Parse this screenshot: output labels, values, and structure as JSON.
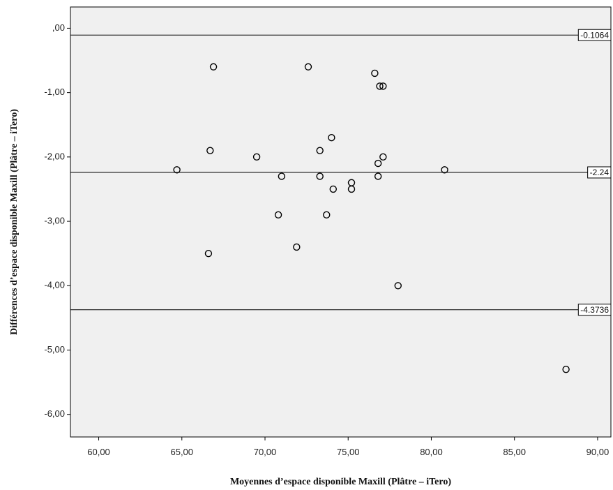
{
  "chart_data": {
    "type": "scatter",
    "title": "",
    "xlabel": "Moyennes d’espace disponible Maxill (Plâtre – iTero)",
    "ylabel": "Différences d’espace disponible Maxill (Plâtre – iTero)",
    "xlim": [
      58.3,
      90.8
    ],
    "ylim": [
      -6.35,
      0.33
    ],
    "grid": false,
    "plot_background": "#f0f0f0",
    "x_ticks": [
      {
        "value": 60,
        "label": "60,00"
      },
      {
        "value": 65,
        "label": "65,00"
      },
      {
        "value": 70,
        "label": "70,00"
      },
      {
        "value": 75,
        "label": "75,00"
      },
      {
        "value": 80,
        "label": "80,00"
      },
      {
        "value": 85,
        "label": "85,00"
      },
      {
        "value": 90,
        "label": "90,00"
      }
    ],
    "y_ticks": [
      {
        "value": 0,
        "label": ",00"
      },
      {
        "value": -1,
        "label": "-1,00"
      },
      {
        "value": -2,
        "label": "-2,00"
      },
      {
        "value": -3,
        "label": "-3,00"
      },
      {
        "value": -4,
        "label": "-4,00"
      },
      {
        "value": -5,
        "label": "-5,00"
      },
      {
        "value": -6,
        "label": "-6,00"
      }
    ],
    "reference_lines": [
      {
        "value": -0.1064,
        "label": "-0.1064"
      },
      {
        "value": -2.24,
        "label": "-2.24"
      },
      {
        "value": -4.3736,
        "label": "-4.3736"
      }
    ],
    "points": [
      {
        "x": 66.9,
        "y": -0.6
      },
      {
        "x": 72.6,
        "y": -0.6
      },
      {
        "x": 76.6,
        "y": -0.7
      },
      {
        "x": 76.9,
        "y": -0.9
      },
      {
        "x": 77.1,
        "y": -0.9
      },
      {
        "x": 74.0,
        "y": -1.7
      },
      {
        "x": 66.7,
        "y": -1.9
      },
      {
        "x": 73.3,
        "y": -1.9
      },
      {
        "x": 69.5,
        "y": -2.0
      },
      {
        "x": 77.1,
        "y": -2.0
      },
      {
        "x": 76.8,
        "y": -2.1
      },
      {
        "x": 64.7,
        "y": -2.2
      },
      {
        "x": 80.8,
        "y": -2.2
      },
      {
        "x": 71.0,
        "y": -2.3
      },
      {
        "x": 73.3,
        "y": -2.3
      },
      {
        "x": 76.8,
        "y": -2.3
      },
      {
        "x": 75.2,
        "y": -2.4
      },
      {
        "x": 74.1,
        "y": -2.5
      },
      {
        "x": 75.2,
        "y": -2.5
      },
      {
        "x": 70.8,
        "y": -2.9
      },
      {
        "x": 73.7,
        "y": -2.9
      },
      {
        "x": 71.9,
        "y": -3.4
      },
      {
        "x": 66.6,
        "y": -3.5
      },
      {
        "x": 78.0,
        "y": -4.0
      },
      {
        "x": 88.1,
        "y": -5.3
      }
    ]
  }
}
